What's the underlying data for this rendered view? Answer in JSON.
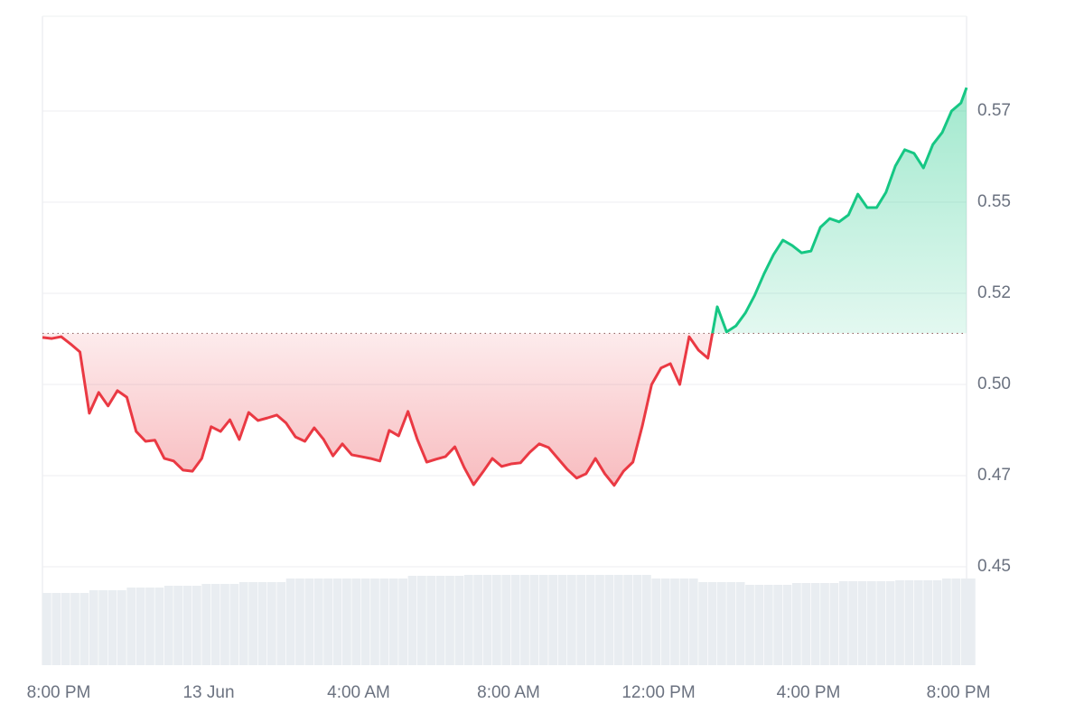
{
  "chart_data": {
    "type": "line",
    "x": [
      0,
      0.25,
      0.5,
      0.75,
      1,
      1.25,
      1.5,
      1.75,
      2,
      2.25,
      2.5,
      2.75,
      3,
      3.25,
      3.5,
      3.75,
      4,
      4.25,
      4.5,
      4.75,
      5,
      5.25,
      5.5,
      5.75,
      6,
      6.25,
      6.5,
      6.75,
      7,
      7.25,
      7.5,
      7.75,
      8,
      8.25,
      8.5,
      8.75,
      9,
      9.25,
      9.5,
      9.75,
      10,
      10.25,
      10.5,
      10.75,
      11,
      11.25,
      11.5,
      11.75,
      12,
      12.25,
      12.5,
      12.75,
      13,
      13.25,
      13.5,
      13.75,
      14,
      14.25,
      14.5,
      14.75,
      15,
      15.25,
      15.5,
      15.75,
      16,
      16.25,
      16.5,
      16.75,
      17,
      17.25,
      17.5,
      17.75,
      18,
      18.25,
      18.5,
      18.75,
      19,
      19.25,
      19.5,
      19.75,
      20,
      20.25,
      20.5,
      20.75,
      21,
      21.25,
      21.5,
      21.75,
      22,
      22.25,
      22.5,
      22.75,
      23,
      23.25,
      23.5,
      23.75,
      24,
      24.25,
      24.5,
      24.65
    ],
    "values": [
      0.5129,
      0.5126,
      0.5131,
      0.5111,
      0.5089,
      0.4921,
      0.4978,
      0.4941,
      0.4983,
      0.4965,
      0.4871,
      0.4844,
      0.4847,
      0.4797,
      0.479,
      0.4765,
      0.4762,
      0.4797,
      0.4884,
      0.4871,
      0.4903,
      0.4849,
      0.4923,
      0.4901,
      0.4908,
      0.4916,
      0.4894,
      0.4856,
      0.4844,
      0.4881,
      0.4849,
      0.4804,
      0.4837,
      0.4807,
      0.4802,
      0.4797,
      0.479,
      0.4874,
      0.4859,
      0.4926,
      0.4849,
      0.4787,
      0.4795,
      0.4802,
      0.4829,
      0.4772,
      0.4725,
      0.476,
      0.4797,
      0.4775,
      0.4782,
      0.4785,
      0.4814,
      0.4837,
      0.4827,
      0.4797,
      0.4767,
      0.4743,
      0.4755,
      0.4797,
      0.4755,
      0.4723,
      0.4762,
      0.4787,
      0.4886,
      0.5,
      0.5045,
      0.5057,
      0.5,
      0.5131,
      0.5094,
      0.5072,
      0.5213,
      0.5144,
      0.5161,
      0.5196,
      0.5245,
      0.5304,
      0.5356,
      0.5396,
      0.5381,
      0.5361,
      0.5366,
      0.5431,
      0.5455,
      0.5446,
      0.5465,
      0.5522,
      0.5485,
      0.5485,
      0.5527,
      0.5599,
      0.5644,
      0.5634,
      0.5594,
      0.5658,
      0.5691,
      0.575,
      0.5772,
      0.5814
    ],
    "volumes": [
      80,
      80,
      80,
      80,
      80,
      83,
      83,
      83,
      83,
      86,
      86,
      86,
      86,
      88,
      88,
      88,
      88,
      90,
      90,
      90,
      90,
      92,
      92,
      92,
      92,
      92,
      96,
      96,
      96,
      96,
      96,
      96,
      96,
      96,
      96,
      96,
      96,
      96,
      96,
      99,
      99,
      99,
      99,
      99,
      99,
      100,
      100,
      100,
      100,
      100,
      100,
      100,
      100,
      100,
      100,
      100,
      100,
      100,
      100,
      100,
      100,
      100,
      100,
      100,
      100,
      96,
      96,
      96,
      96,
      96,
      92,
      92,
      92,
      92,
      92,
      89,
      89,
      89,
      89,
      89,
      91,
      91,
      91,
      91,
      91,
      93,
      93,
      93,
      93,
      93,
      93,
      94,
      94,
      94,
      94,
      94,
      96,
      96,
      96,
      96
    ],
    "baseline": 0.514,
    "colors": {
      "up": "#16c784",
      "down": "#ea3943",
      "volume": "#e9edf1"
    },
    "xlim": [
      0,
      24.65
    ],
    "ylim": [
      0.423,
      0.601
    ],
    "yticks": [
      0.45,
      {
        "value": 0.475,
        "label": "0.47"
      },
      {
        "value": 0.5,
        "label": "0.50"
      },
      {
        "value": 0.525,
        "label": "0.52"
      },
      0.55,
      {
        "value": 0.575,
        "label": "0.57"
      }
    ],
    "xticks": [
      {
        "value": 0,
        "label": "8:00 PM"
      },
      {
        "value": 4,
        "label": "13 Jun"
      },
      {
        "value": 8,
        "label": "4:00 AM"
      },
      {
        "value": 12,
        "label": "8:00 AM"
      },
      {
        "value": 16,
        "label": "12:00 PM"
      },
      {
        "value": 20,
        "label": "4:00 PM"
      },
      {
        "value": 24,
        "label": "8:00 PM"
      }
    ],
    "grid": true
  }
}
